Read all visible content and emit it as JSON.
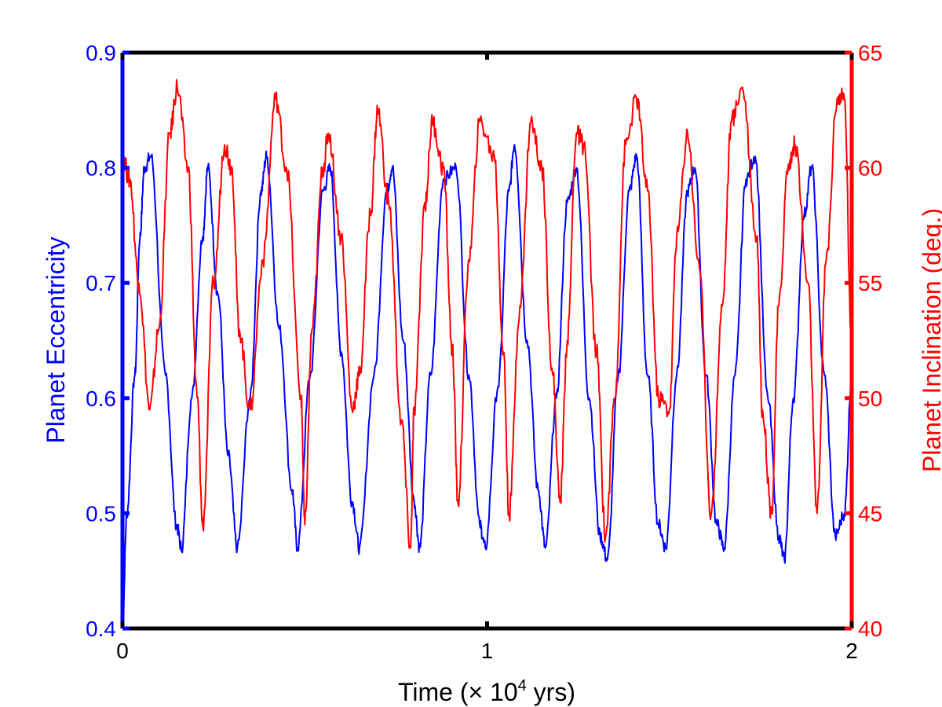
{
  "chart_data": {
    "type": "line",
    "title": "",
    "xlabel": {
      "prefix": "Time (",
      "times": "×",
      "base": " 10",
      "exponent": "4",
      "suffix": " yrs)"
    },
    "ylabel_left": "Planet Eccentricity",
    "ylabel_right": "Planet Inclination (deg.)",
    "xlim": [
      0,
      2
    ],
    "ylim_left": [
      0.4,
      0.9
    ],
    "ylim_right": [
      40,
      65
    ],
    "x_ticks": [
      0,
      1,
      2
    ],
    "x_tick_labels": [
      "0",
      "1",
      "2"
    ],
    "y_left_ticks": [
      0.4,
      0.5,
      0.6,
      0.7,
      0.8,
      0.9
    ],
    "y_left_tick_labels": [
      "0.4",
      "0.5",
      "0.6",
      "0.7",
      "0.8",
      "0.9"
    ],
    "y_right_ticks": [
      40,
      45,
      50,
      55,
      60,
      65
    ],
    "y_right_tick_labels": [
      "40",
      "45",
      "50",
      "55",
      "60",
      "65"
    ],
    "grid": false,
    "series": [
      {
        "name": "Planet Eccentricity",
        "axis": "left",
        "color": "#0000ff",
        "x": [
          0.0,
          0.012,
          0.034,
          0.048,
          0.06,
          0.078,
          0.118,
          0.148,
          0.162,
          0.19,
          0.22,
          0.234,
          0.262,
          0.29,
          0.315,
          0.35,
          0.38,
          0.395,
          0.43,
          0.465,
          0.48,
          0.515,
          0.55,
          0.57,
          0.6,
          0.63,
          0.65,
          0.69,
          0.725,
          0.74,
          0.77,
          0.8,
          0.815,
          0.845,
          0.88,
          0.915,
          0.95,
          0.98,
          0.995,
          1.03,
          1.06,
          1.075,
          1.11,
          1.14,
          1.16,
          1.19,
          1.22,
          1.245,
          1.28,
          1.31,
          1.33,
          1.36,
          1.39,
          1.41,
          1.44,
          1.47,
          1.49,
          1.52,
          1.55,
          1.57,
          1.6,
          1.63,
          1.65,
          1.68,
          1.71,
          1.735,
          1.77,
          1.8,
          1.815,
          1.84,
          1.87,
          1.89,
          1.925,
          1.955,
          1.98,
          2.0
        ],
        "y": [
          0.4,
          0.5,
          0.62,
          0.74,
          0.8,
          0.81,
          0.62,
          0.49,
          0.47,
          0.6,
          0.74,
          0.8,
          0.69,
          0.55,
          0.47,
          0.6,
          0.78,
          0.81,
          0.66,
          0.52,
          0.47,
          0.62,
          0.78,
          0.8,
          0.64,
          0.51,
          0.47,
          0.62,
          0.78,
          0.8,
          0.65,
          0.51,
          0.47,
          0.62,
          0.79,
          0.8,
          0.62,
          0.49,
          0.47,
          0.61,
          0.78,
          0.82,
          0.65,
          0.52,
          0.47,
          0.6,
          0.77,
          0.8,
          0.6,
          0.48,
          0.46,
          0.62,
          0.78,
          0.81,
          0.62,
          0.49,
          0.47,
          0.62,
          0.78,
          0.8,
          0.62,
          0.49,
          0.47,
          0.62,
          0.79,
          0.81,
          0.6,
          0.48,
          0.46,
          0.6,
          0.76,
          0.8,
          0.62,
          0.48,
          0.5,
          0.62
        ]
      },
      {
        "name": "Planet Inclination (deg.)",
        "axis": "right",
        "color": "#ff0000",
        "x": [
          0.0,
          0.02,
          0.045,
          0.075,
          0.1,
          0.13,
          0.15,
          0.18,
          0.205,
          0.22,
          0.25,
          0.28,
          0.3,
          0.32,
          0.35,
          0.385,
          0.42,
          0.45,
          0.49,
          0.5,
          0.52,
          0.55,
          0.565,
          0.6,
          0.63,
          0.65,
          0.68,
          0.7,
          0.73,
          0.765,
          0.79,
          0.8,
          0.83,
          0.85,
          0.88,
          0.905,
          0.92,
          0.95,
          0.98,
          1.02,
          1.045,
          1.06,
          1.09,
          1.12,
          1.15,
          1.18,
          1.2,
          1.22,
          1.245,
          1.265,
          1.3,
          1.325,
          1.35,
          1.38,
          1.41,
          1.44,
          1.47,
          1.5,
          1.52,
          1.55,
          1.58,
          1.615,
          1.645,
          1.67,
          1.7,
          1.74,
          1.755,
          1.78,
          1.8,
          1.825,
          1.845,
          1.88,
          1.905,
          1.93,
          1.96,
          1.98,
          2.0
        ],
        "y": [
          60.5,
          59.5,
          55.0,
          49.5,
          53.0,
          61.5,
          63.5,
          60.0,
          50.0,
          44.5,
          55.0,
          61.0,
          60.0,
          53.0,
          49.5,
          56.0,
          63.0,
          60.0,
          50.0,
          44.5,
          53.0,
          60.0,
          61.5,
          57.0,
          49.5,
          51.0,
          58.0,
          62.5,
          58.5,
          49.0,
          43.5,
          49.5,
          58.5,
          62.0,
          60.0,
          52.0,
          45.5,
          56.0,
          62.0,
          60.5,
          52.0,
          45.0,
          54.0,
          62.0,
          60.0,
          51.0,
          45.5,
          52.5,
          61.5,
          61.0,
          52.0,
          44.0,
          50.0,
          61.0,
          63.0,
          59.0,
          50.0,
          49.5,
          57.0,
          61.5,
          56.0,
          45.0,
          54.0,
          62.0,
          63.5,
          57.0,
          49.5,
          45.0,
          54.0,
          60.0,
          61.0,
          55.0,
          45.0,
          56.0,
          63.0,
          63.0,
          52.0
        ]
      }
    ]
  }
}
